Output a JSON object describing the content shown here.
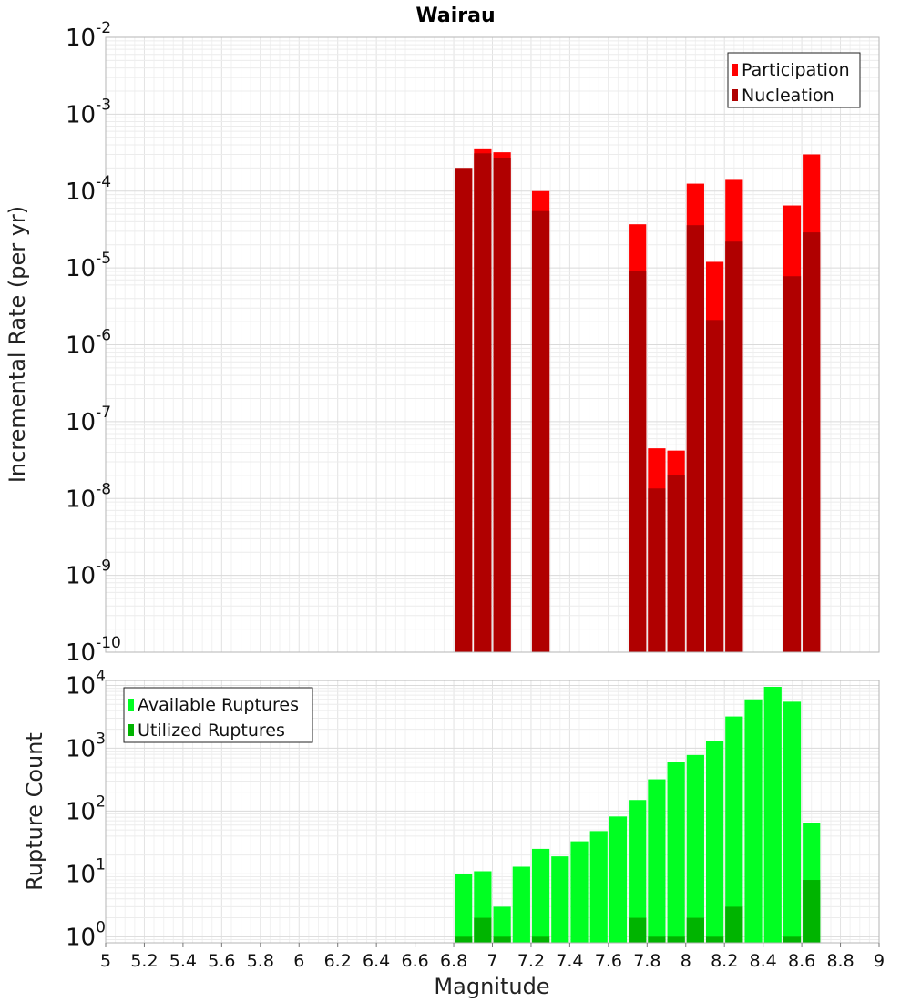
{
  "chart_data": [
    {
      "type": "bar",
      "title": "Wairau",
      "ylabel": "Incremental Rate (per yr)",
      "xlabel": "",
      "yscale": "log",
      "ylim": [
        1e-10,
        0.01
      ],
      "xlim": [
        5,
        9
      ],
      "x_ticks": [
        "5",
        "5.2",
        "5.4",
        "5.6",
        "5.8",
        "6",
        "6.2",
        "6.4",
        "6.6",
        "6.8",
        "7",
        "7.2",
        "7.4",
        "7.6",
        "7.8",
        "8",
        "8.2",
        "8.4",
        "8.6",
        "8.8",
        "9"
      ],
      "y_tick_exponents": [
        "-10",
        "-9",
        "-8",
        "-7",
        "-6",
        "-5",
        "-4",
        "-3",
        "-2"
      ],
      "grid": true,
      "legend_position": "top-right",
      "series": [
        {
          "name": "Participation",
          "color": "#ff0000",
          "points": [
            {
              "x": 6.85,
              "y": 0.0002
            },
            {
              "x": 6.95,
              "y": 0.00035
            },
            {
              "x": 7.05,
              "y": 0.00032
            },
            {
              "x": 7.25,
              "y": 0.0001
            },
            {
              "x": 7.75,
              "y": 3.7e-05
            },
            {
              "x": 7.85,
              "y": 4.5e-08
            },
            {
              "x": 7.95,
              "y": 4.2e-08
            },
            {
              "x": 8.05,
              "y": 0.000125
            },
            {
              "x": 8.15,
              "y": 1.2e-05
            },
            {
              "x": 8.25,
              "y": 0.00014
            },
            {
              "x": 8.55,
              "y": 6.5e-05
            },
            {
              "x": 8.65,
              "y": 0.0003
            }
          ]
        },
        {
          "name": "Nucleation",
          "color": "#b00000",
          "points": [
            {
              "x": 6.85,
              "y": 0.0002
            },
            {
              "x": 6.95,
              "y": 0.00031
            },
            {
              "x": 7.05,
              "y": 0.00027
            },
            {
              "x": 7.25,
              "y": 5.5e-05
            },
            {
              "x": 7.75,
              "y": 9e-06
            },
            {
              "x": 7.85,
              "y": 1.35e-08
            },
            {
              "x": 7.95,
              "y": 2e-08
            },
            {
              "x": 8.05,
              "y": 3.6e-05
            },
            {
              "x": 8.15,
              "y": 2.1e-06
            },
            {
              "x": 8.25,
              "y": 2.2e-05
            },
            {
              "x": 8.55,
              "y": 7.8e-06
            },
            {
              "x": 8.65,
              "y": 2.9e-05
            }
          ]
        }
      ]
    },
    {
      "type": "bar",
      "title": "",
      "ylabel": "Rupture Count",
      "xlabel": "Magnitude",
      "yscale": "log",
      "ylim": [
        0.8,
        12000
      ],
      "xlim": [
        5,
        9
      ],
      "x_ticks": [
        "5",
        "5.2",
        "5.4",
        "5.6",
        "5.8",
        "6",
        "6.2",
        "6.4",
        "6.6",
        "6.8",
        "7",
        "7.2",
        "7.4",
        "7.6",
        "7.8",
        "8",
        "8.2",
        "8.4",
        "8.6",
        "8.8",
        "9"
      ],
      "y_tick_exponents": [
        "0",
        "1",
        "2",
        "3",
        "4"
      ],
      "grid": true,
      "legend_position": "top-left",
      "series": [
        {
          "name": "Available Ruptures",
          "color": "#00ff22",
          "points": [
            {
              "x": 6.85,
              "y": 10
            },
            {
              "x": 6.95,
              "y": 11
            },
            {
              "x": 7.05,
              "y": 3
            },
            {
              "x": 7.15,
              "y": 13
            },
            {
              "x": 7.25,
              "y": 25
            },
            {
              "x": 7.35,
              "y": 19
            },
            {
              "x": 7.45,
              "y": 33
            },
            {
              "x": 7.55,
              "y": 48
            },
            {
              "x": 7.65,
              "y": 82
            },
            {
              "x": 7.75,
              "y": 150
            },
            {
              "x": 7.85,
              "y": 320
            },
            {
              "x": 7.95,
              "y": 600
            },
            {
              "x": 8.05,
              "y": 780
            },
            {
              "x": 8.15,
              "y": 1300
            },
            {
              "x": 8.25,
              "y": 3200
            },
            {
              "x": 8.35,
              "y": 6000
            },
            {
              "x": 8.45,
              "y": 9500
            },
            {
              "x": 8.55,
              "y": 5500
            },
            {
              "x": 8.65,
              "y": 65
            }
          ]
        },
        {
          "name": "Utilized Ruptures",
          "color": "#00b400",
          "points": [
            {
              "x": 6.85,
              "y": 1
            },
            {
              "x": 6.95,
              "y": 2
            },
            {
              "x": 7.05,
              "y": 1
            },
            {
              "x": 7.25,
              "y": 1
            },
            {
              "x": 7.75,
              "y": 2
            },
            {
              "x": 7.85,
              "y": 1
            },
            {
              "x": 7.95,
              "y": 1
            },
            {
              "x": 8.05,
              "y": 2
            },
            {
              "x": 8.15,
              "y": 1
            },
            {
              "x": 8.25,
              "y": 3
            },
            {
              "x": 8.55,
              "y": 1
            },
            {
              "x": 8.65,
              "y": 8
            }
          ]
        }
      ]
    }
  ]
}
